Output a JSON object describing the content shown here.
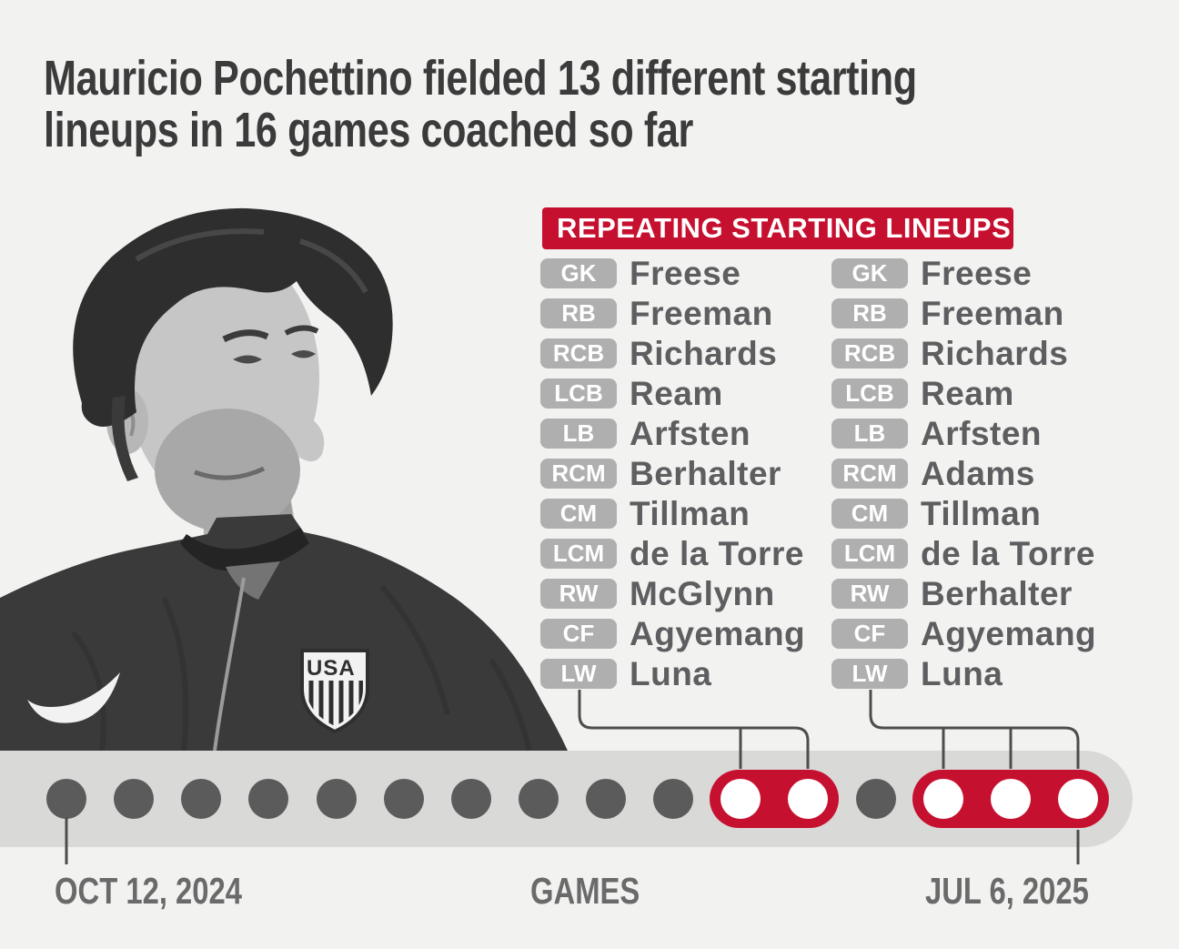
{
  "title": {
    "line1": "Mauricio Pochettino fielded 13 different starting",
    "line2": "lineups in 16 games coached so far"
  },
  "banner": {
    "label": "REPEATING STARTING LINEUPS"
  },
  "photo": {
    "crest_text": "USA"
  },
  "colors": {
    "red": "#C6102F",
    "badge": "#AFAFAF",
    "name": "#5E5E60",
    "title": "#3B3B3B",
    "band": "#D9D9D8",
    "dot": "#5B5B5B",
    "label": "#6A6A6A",
    "connector": "#4D4D4D",
    "bg": "#F2F2F1"
  },
  "lineups": [
    {
      "id": "repeating-lineup-a",
      "players": [
        {
          "pos": "GK",
          "name": "Freese"
        },
        {
          "pos": "RB",
          "name": "Freeman"
        },
        {
          "pos": "RCB",
          "name": "Richards"
        },
        {
          "pos": "LCB",
          "name": "Ream"
        },
        {
          "pos": "LB",
          "name": "Arfsten"
        },
        {
          "pos": "RCM",
          "name": "Berhalter"
        },
        {
          "pos": "CM",
          "name": "Tillman"
        },
        {
          "pos": "LCM",
          "name": "de la Torre"
        },
        {
          "pos": "RW",
          "name": "McGlynn"
        },
        {
          "pos": "CF",
          "name": "Agyemang"
        },
        {
          "pos": "LW",
          "name": "Luna"
        }
      ]
    },
    {
      "id": "repeating-lineup-b",
      "players": [
        {
          "pos": "GK",
          "name": "Freese"
        },
        {
          "pos": "RB",
          "name": "Freeman"
        },
        {
          "pos": "RCB",
          "name": "Richards"
        },
        {
          "pos": "LCB",
          "name": "Ream"
        },
        {
          "pos": "LB",
          "name": "Arfsten"
        },
        {
          "pos": "RCM",
          "name": "Adams"
        },
        {
          "pos": "CM",
          "name": "Tillman"
        },
        {
          "pos": "LCM",
          "name": "de la Torre"
        },
        {
          "pos": "RW",
          "name": "Berhalter"
        },
        {
          "pos": "CF",
          "name": "Agyemang"
        },
        {
          "pos": "LW",
          "name": "Luna"
        }
      ]
    }
  ],
  "timeline": {
    "start_label": "OCT 12, 2024",
    "axis_label": "GAMES",
    "end_label": "JUL 6, 2025",
    "games": [
      {
        "game": 1,
        "repeated": false
      },
      {
        "game": 2,
        "repeated": false
      },
      {
        "game": 3,
        "repeated": false
      },
      {
        "game": 4,
        "repeated": false
      },
      {
        "game": 5,
        "repeated": false
      },
      {
        "game": 6,
        "repeated": false
      },
      {
        "game": 7,
        "repeated": false
      },
      {
        "game": 8,
        "repeated": false
      },
      {
        "game": 9,
        "repeated": false
      },
      {
        "game": 10,
        "repeated": false
      },
      {
        "game": 11,
        "repeated": true
      },
      {
        "game": 12,
        "repeated": true
      },
      {
        "game": 13,
        "repeated": false
      },
      {
        "game": 14,
        "repeated": true
      },
      {
        "game": 15,
        "repeated": true
      },
      {
        "game": 16,
        "repeated": true
      }
    ]
  },
  "chart_data": {
    "type": "scatter",
    "title": "Mauricio Pochettino fielded 13 different starting lineups in 16 games coached so far",
    "xlabel": "GAMES",
    "x": [
      1,
      2,
      3,
      4,
      5,
      6,
      7,
      8,
      9,
      10,
      11,
      12,
      13,
      14,
      15,
      16
    ],
    "x_start_label": "OCT 12, 2024",
    "x_end_label": "JUL 6, 2025",
    "total_games": 16,
    "different_lineups": 13,
    "highlight_legend": "REPEATING STARTING LINEUPS",
    "repeating_groups": [
      {
        "games": [
          11,
          12
        ],
        "lineup_index": 0
      },
      {
        "games": [
          14,
          15,
          16
        ],
        "lineup_index": 1
      }
    ],
    "legend_position": "top-right",
    "grid": false
  }
}
